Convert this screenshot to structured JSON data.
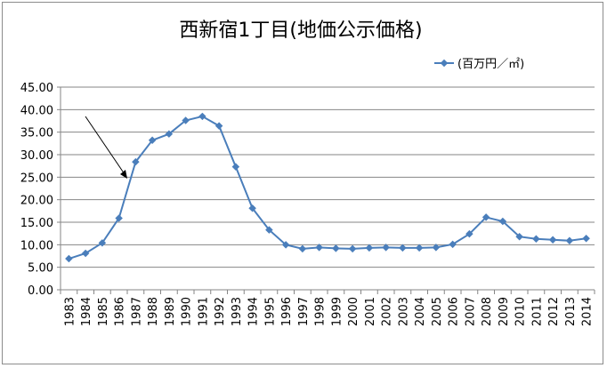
{
  "chart_data": {
    "type": "line",
    "title": "西新宿1丁目(地価公示価格)",
    "x": [
      "1983",
      "1984",
      "1985",
      "1986",
      "1987",
      "1988",
      "1989",
      "1990",
      "1991",
      "1992",
      "1993",
      "1994",
      "1995",
      "1996",
      "1997",
      "1998",
      "1999",
      "2000",
      "2001",
      "2002",
      "2003",
      "2004",
      "2005",
      "2006",
      "2007",
      "2008",
      "2009",
      "2010",
      "2011",
      "2012",
      "2013",
      "2014"
    ],
    "series": [
      {
        "name": "(百万円／㎡)",
        "color": "#4a7ebb",
        "values": [
          6.9,
          8.1,
          10.4,
          15.9,
          28.4,
          33.2,
          34.6,
          37.6,
          38.5,
          36.4,
          27.3,
          18.1,
          13.3,
          10.0,
          9.1,
          9.4,
          9.2,
          9.1,
          9.3,
          9.4,
          9.3,
          9.3,
          9.4,
          10.1,
          12.4,
          16.1,
          15.2,
          11.8,
          11.3,
          11.1,
          10.9,
          11.4
        ]
      }
    ],
    "yticks": [
      "0.00",
      "5.00",
      "10.00",
      "15.00",
      "20.00",
      "25.00",
      "30.00",
      "35.00",
      "40.00",
      "45.00"
    ],
    "ylim": [
      0,
      45
    ],
    "grid": true,
    "legend": "top-right",
    "annotation": "arrow pointing to 1986-1987 rise"
  }
}
